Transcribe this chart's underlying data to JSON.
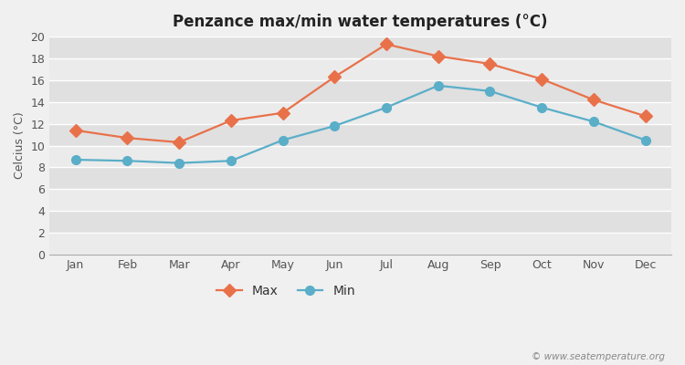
{
  "title": "Penzance max/min water temperatures (°C)",
  "ylabel": "Celcius (°C)",
  "months": [
    "Jan",
    "Feb",
    "Mar",
    "Apr",
    "May",
    "Jun",
    "Jul",
    "Aug",
    "Sep",
    "Oct",
    "Nov",
    "Dec"
  ],
  "max_temps": [
    11.4,
    10.7,
    10.3,
    12.3,
    13.0,
    16.3,
    19.3,
    18.2,
    17.5,
    16.1,
    14.2,
    12.7
  ],
  "min_temps": [
    8.7,
    8.6,
    8.4,
    8.6,
    10.5,
    11.8,
    13.5,
    15.5,
    15.0,
    13.5,
    12.2,
    10.5
  ],
  "max_color": "#e8714a",
  "min_color": "#5aaec8",
  "band_color_light": "#ebebeb",
  "band_color_dark": "#e0e0e0",
  "ylim": [
    0,
    20
  ],
  "yticks": [
    0,
    2,
    4,
    6,
    8,
    10,
    12,
    14,
    16,
    18,
    20
  ],
  "legend_labels": [
    "Max",
    "Min"
  ],
  "watermark": "© www.seatemperature.org",
  "max_marker": "D",
  "min_marker": "o",
  "max_markersize": 7,
  "min_markersize": 7,
  "linewidth": 1.6,
  "title_fontsize": 12,
  "label_fontsize": 9,
  "tick_fontsize": 9,
  "legend_fontsize": 10,
  "background_color": "#f0f0f0"
}
